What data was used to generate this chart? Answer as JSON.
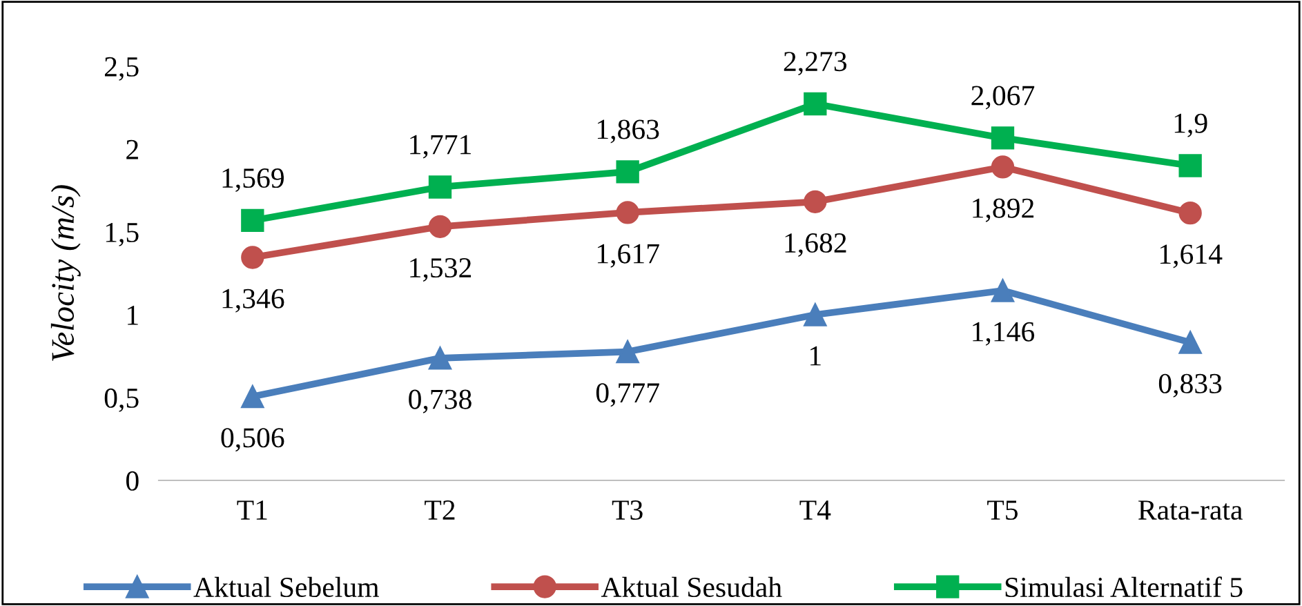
{
  "chart_data": {
    "type": "line",
    "ylabel": "Velocity (m/s)",
    "categories": [
      "T1",
      "T2",
      "T3",
      "T4",
      "T5",
      "Rata-rata"
    ],
    "series": [
      {
        "name": "Aktual Sebelum",
        "color": "#4a7ebb",
        "marker": "triangle",
        "values": [
          0.506,
          0.738,
          0.777,
          1,
          1.146,
          0.833
        ],
        "value_labels": [
          "0,506",
          "0,738",
          "0,777",
          "1",
          "1,146",
          "0,833"
        ]
      },
      {
        "name": "Aktual Sesudah",
        "color": "#c0504d",
        "marker": "circle",
        "values": [
          1.346,
          1.532,
          1.617,
          1.682,
          1.892,
          1.614
        ],
        "value_labels": [
          "1,346",
          "1,532",
          "1,617",
          "1,682",
          "1,892",
          "1,614"
        ]
      },
      {
        "name": "Simulasi Alternatif 5",
        "color": "#00b050",
        "marker": "square",
        "values": [
          1.569,
          1.771,
          1.863,
          2.273,
          2.067,
          1.9
        ],
        "value_labels": [
          "1,569",
          "1,771",
          "1,863",
          "2,273",
          "2,067",
          "1,9"
        ]
      }
    ],
    "ylim": [
      0,
      2.5
    ],
    "yticks": [
      0,
      {
        "value": 0.5,
        "label": "0,5"
      },
      1,
      {
        "value": 1.5,
        "label": "1,5"
      },
      2,
      {
        "value": 2.5,
        "label": "2,5"
      }
    ],
    "grid": false,
    "legend": "bottom",
    "line_style": "solid"
  }
}
